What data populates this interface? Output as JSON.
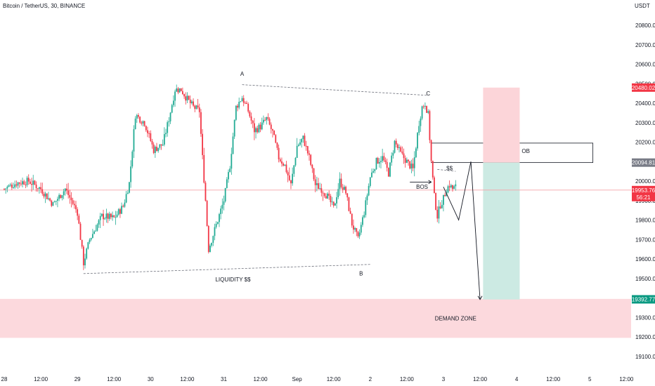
{
  "header": {
    "title": "Bitcoin / TetherUS, 30, BINANCE",
    "currency": "USDT"
  },
  "chart_data": {
    "type": "candlestick",
    "symbol": "Bitcoin / TetherUS",
    "interval": "30",
    "exchange": "BINANCE",
    "ylim": [
      19050,
      20850
    ],
    "y_ticks": [
      20800,
      20700,
      20600,
      20500,
      20400,
      20300,
      20200,
      20100,
      20000,
      19900,
      19800,
      19700,
      19600,
      19500,
      19300,
      19200,
      19100
    ],
    "y_tick_labels": [
      "20800.00",
      "20700.00",
      "20600.00",
      "20500.00",
      "20400.00",
      "20300.00",
      "20200.00",
      "20100.00",
      "20000.00",
      "19900.00",
      "19800.00",
      "19700.00",
      "19600.00",
      "19500.00",
      "19300.00",
      "19200.00",
      "19100.00"
    ],
    "x_axis_labels": [
      {
        "label": "28",
        "t": 0
      },
      {
        "label": "12:00",
        "t": 12
      },
      {
        "label": "29",
        "t": 24
      },
      {
        "label": "12:00",
        "t": 36
      },
      {
        "label": "30",
        "t": 48
      },
      {
        "label": "12:00",
        "t": 60
      },
      {
        "label": "31",
        "t": 72
      },
      {
        "label": "12:00",
        "t": 84
      },
      {
        "label": "Sep",
        "t": 96
      },
      {
        "label": "12:00",
        "t": 108
      },
      {
        "label": "2",
        "t": 120
      },
      {
        "label": "12:00",
        "t": 132
      },
      {
        "label": "3",
        "t": 144
      },
      {
        "label": "12:00",
        "t": 156
      },
      {
        "label": "4",
        "t": 168
      },
      {
        "label": "12:00",
        "t": 180
      },
      {
        "label": "5",
        "t": 192
      },
      {
        "label": "12:00",
        "t": 204
      }
    ],
    "x_unit": "hours since 28 00:00",
    "price_anchors": [
      {
        "t": 0,
        "p": 19960
      },
      {
        "t": 4,
        "p": 19990
      },
      {
        "t": 8,
        "p": 20000
      },
      {
        "t": 12,
        "p": 19960
      },
      {
        "t": 16,
        "p": 19880
      },
      {
        "t": 20,
        "p": 19960
      },
      {
        "t": 24,
        "p": 19840
      },
      {
        "t": 26,
        "p": 19580
      },
      {
        "t": 28,
        "p": 19700
      },
      {
        "t": 32,
        "p": 19820
      },
      {
        "t": 36,
        "p": 19810
      },
      {
        "t": 39,
        "p": 19870
      },
      {
        "t": 41,
        "p": 19990
      },
      {
        "t": 43,
        "p": 20340
      },
      {
        "t": 46,
        "p": 20300
      },
      {
        "t": 49,
        "p": 20160
      },
      {
        "t": 52,
        "p": 20190
      },
      {
        "t": 54,
        "p": 20320
      },
      {
        "t": 56,
        "p": 20470
      },
      {
        "t": 58,
        "p": 20470
      },
      {
        "t": 60,
        "p": 20420
      },
      {
        "t": 62,
        "p": 20380
      },
      {
        "t": 64,
        "p": 20360
      },
      {
        "t": 65,
        "p": 20120
      },
      {
        "t": 66,
        "p": 19900
      },
      {
        "t": 67,
        "p": 19650
      },
      {
        "t": 68,
        "p": 19700
      },
      {
        "t": 70,
        "p": 19800
      },
      {
        "t": 72,
        "p": 19900
      },
      {
        "t": 74,
        "p": 20080
      },
      {
        "t": 76,
        "p": 20380
      },
      {
        "t": 78,
        "p": 20430
      },
      {
        "t": 80,
        "p": 20360
      },
      {
        "t": 82,
        "p": 20260
      },
      {
        "t": 84,
        "p": 20280
      },
      {
        "t": 86,
        "p": 20320
      },
      {
        "t": 88,
        "p": 20250
      },
      {
        "t": 90,
        "p": 20120
      },
      {
        "t": 92,
        "p": 20080
      },
      {
        "t": 94,
        "p": 19980
      },
      {
        "t": 96,
        "p": 20180
      },
      {
        "t": 98,
        "p": 20220
      },
      {
        "t": 100,
        "p": 20120
      },
      {
        "t": 102,
        "p": 19980
      },
      {
        "t": 104,
        "p": 19960
      },
      {
        "t": 106,
        "p": 19920
      },
      {
        "t": 108,
        "p": 19860
      },
      {
        "t": 110,
        "p": 20000
      },
      {
        "t": 112,
        "p": 19940
      },
      {
        "t": 114,
        "p": 19780
      },
      {
        "t": 116,
        "p": 19700
      },
      {
        "t": 118,
        "p": 19840
      },
      {
        "t": 120,
        "p": 20020
      },
      {
        "t": 122,
        "p": 20100
      },
      {
        "t": 124,
        "p": 20120
      },
      {
        "t": 126,
        "p": 20040
      },
      {
        "t": 128,
        "p": 20200
      },
      {
        "t": 130,
        "p": 20140
      },
      {
        "t": 132,
        "p": 20100
      },
      {
        "t": 134,
        "p": 20060
      },
      {
        "t": 136,
        "p": 20300
      },
      {
        "t": 137,
        "p": 20380
      },
      {
        "t": 138,
        "p": 20400
      },
      {
        "t": 139,
        "p": 20340
      },
      {
        "t": 140,
        "p": 20100
      },
      {
        "t": 141,
        "p": 19920
      },
      {
        "t": 142,
        "p": 19820
      },
      {
        "t": 143,
        "p": 19880
      },
      {
        "t": 144,
        "p": 19910
      },
      {
        "t": 145,
        "p": 19960
      },
      {
        "t": 146,
        "p": 19980
      },
      {
        "t": 147,
        "p": 19960
      },
      {
        "t": 148,
        "p": 19970
      }
    ],
    "current_price": {
      "value": 19953.76,
      "label": "19953.76",
      "countdown": "56:21"
    },
    "price_tags": [
      {
        "value": 20480.02,
        "label": "20480.02",
        "color": "#f23645"
      },
      {
        "value": 20094.81,
        "label": "20094.81",
        "color": "#787b86"
      },
      {
        "value": 19392.77,
        "label": "19392.77",
        "color": "#089981"
      }
    ],
    "annotations": [
      {
        "text": "A",
        "t": 78,
        "p": 20540
      },
      {
        "text": "B",
        "t": 117,
        "p": 19515
      },
      {
        "text": "C",
        "t": 139,
        "p": 20440
      },
      {
        "text": "BOS",
        "t": 137,
        "p": 19960
      },
      {
        "text": "$$",
        "t": 146,
        "p": 20055
      },
      {
        "text": "OB",
        "t": 171,
        "p": 20145
      },
      {
        "text": "LIQUIDITY $$",
        "t": 75,
        "p": 19485
      },
      {
        "text": "DEMAND ZONE",
        "t": 148,
        "p": 19285
      }
    ],
    "trend_lines": [
      {
        "from": {
          "t": 26,
          "p": 19525
        },
        "to": {
          "t": 120,
          "p": 19572
        },
        "style": "dashed"
      },
      {
        "from": {
          "t": 78,
          "p": 20495
        },
        "to": {
          "t": 139,
          "p": 20440
        },
        "style": "dashed"
      },
      {
        "from": {
          "t": 142,
          "p": 20060
        },
        "to": {
          "t": 148,
          "p": 20050
        },
        "style": "dashed"
      }
    ],
    "zones": [
      {
        "name": "ob-box",
        "t0": 140,
        "t1": 193,
        "p0": 20095,
        "p1": 20195,
        "fill": "none",
        "stroke": "#131722"
      },
      {
        "name": "demand-zone",
        "t0": -6,
        "t1": 206,
        "p0": 19195,
        "p1": 19395,
        "fill": "#fcd9dd",
        "stroke": "none"
      },
      {
        "name": "stop-zone",
        "t0": 157,
        "t1": 169,
        "p0": 20095,
        "p1": 20480,
        "fill": "#fcd5d9",
        "stroke": "none"
      },
      {
        "name": "target-zone",
        "t0": 157,
        "t1": 169,
        "p0": 19392,
        "p1": 20095,
        "fill": "#cceae3",
        "stroke": "none"
      }
    ],
    "projection_path": [
      {
        "t": 144,
        "p": 19970
      },
      {
        "t": 149,
        "p": 19800
      },
      {
        "t": 153,
        "p": 20100
      },
      {
        "t": 156,
        "p": 19392
      }
    ],
    "bos_arrow": {
      "from": {
        "t": 133,
        "p": 19995
      },
      "to": {
        "t": 140,
        "p": 19995
      }
    },
    "colors": {
      "up": "#22ab94",
      "down": "#f23645",
      "axis_text": "#131722",
      "current_line": "#f5a3a9"
    }
  }
}
